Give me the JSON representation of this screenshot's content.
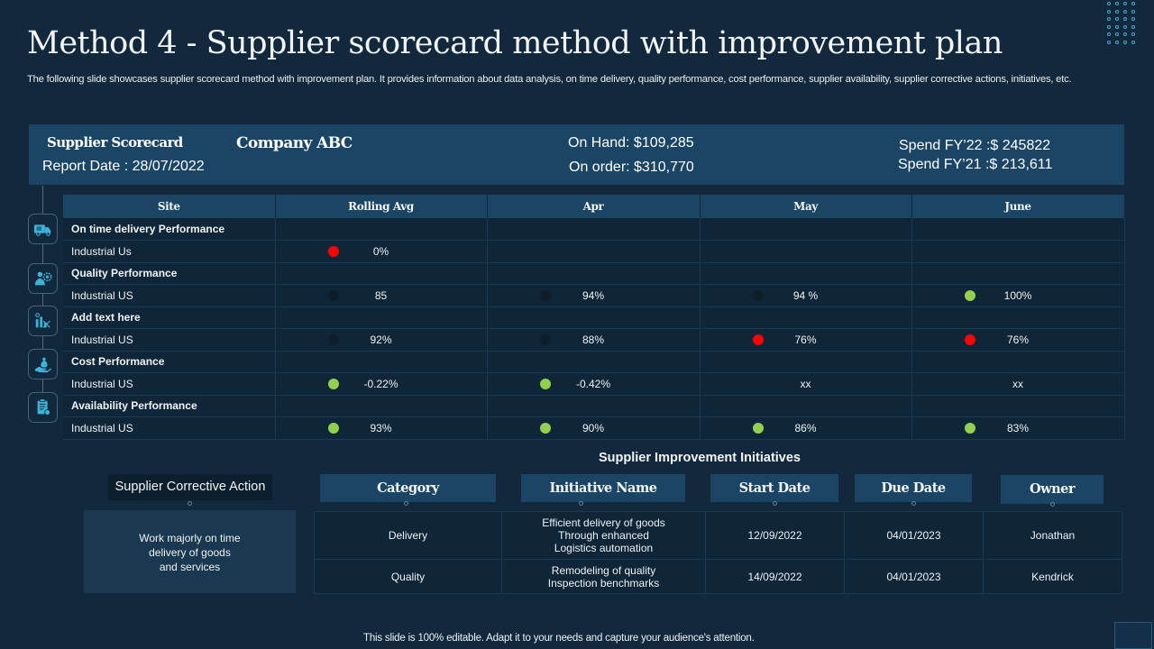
{
  "slide": {
    "title": "Method 4 - Supplier scorecard method with improvement plan",
    "subtitle": "The following slide showcases supplier scorecard method with improvement plan. It provides information about data analysis, on time delivery, quality performance, cost performance, supplier availability, supplier corrective actions, initiatives, etc.",
    "footer": "This slide is 100% editable. Adapt it to your needs and capture your audience's attention."
  },
  "info_band": {
    "scorecard_title": "Supplier Scorecard",
    "report_date": "Report Date : 28/07/2022",
    "company": "Company ABC",
    "on_hand": "On Hand: $109,285",
    "on_order": "On order: $310,770",
    "spend_fy22": "Spend FY’22 :$ 245822",
    "spend_fy21": "Spend FY’21 :$ 213,611"
  },
  "icons": [
    "delivery-truck-icon",
    "quality-person-gear-icon",
    "chart-analysis-icon",
    "cost-hand-money-icon",
    "availability-clipboard-icon"
  ],
  "status_colors": {
    "red": "#ff0000",
    "green": "#92d050",
    "dark": "#0d1d2b"
  },
  "scorecard": {
    "headers": [
      "Site",
      "Rolling Avg",
      "Apr",
      "May",
      "June"
    ],
    "groups": [
      {
        "label": "On time delivery  Performance",
        "site": "Industrial Us",
        "cells": [
          {
            "value": "0%",
            "status": "red"
          },
          {
            "value": "",
            "status": ""
          },
          {
            "value": "",
            "status": ""
          },
          {
            "value": "",
            "status": ""
          }
        ]
      },
      {
        "label": "Quality  Performance",
        "site": "Industrial US",
        "cells": [
          {
            "value": "85",
            "status": "dark"
          },
          {
            "value": "94%",
            "status": "dark"
          },
          {
            "value": "94 %",
            "status": "dark"
          },
          {
            "value": "100%",
            "status": "green"
          }
        ]
      },
      {
        "label": "Add  text here",
        "site": "Industrial US",
        "cells": [
          {
            "value": "92%",
            "status": "dark"
          },
          {
            "value": "88%",
            "status": "dark"
          },
          {
            "value": "76%",
            "status": "red"
          },
          {
            "value": "76%",
            "status": "red"
          }
        ]
      },
      {
        "label": "Cost Performance",
        "site": "Industrial US",
        "cells": [
          {
            "value": "-0.22%",
            "status": "green"
          },
          {
            "value": "-0.42%",
            "status": "green"
          },
          {
            "value": "xx",
            "status": ""
          },
          {
            "value": "xx",
            "status": ""
          }
        ]
      },
      {
        "label": "Availability  Performance",
        "site": "Industrial US",
        "cells": [
          {
            "value": "93%",
            "status": "green"
          },
          {
            "value": "90%",
            "status": "green"
          },
          {
            "value": "86%",
            "status": "green"
          },
          {
            "value": "83%",
            "status": "green"
          }
        ]
      }
    ]
  },
  "improvement": {
    "section_title": "Supplier Improvement Initiatives",
    "corrective_action_label": "Supplier Corrective Action",
    "corrective_action_text": [
      "Work majorly on time",
      "delivery  of goods",
      "and services"
    ],
    "headers": [
      "Category",
      "Initiative Name",
      "Start Date",
      "Due Date",
      "Owner"
    ],
    "rows": [
      {
        "category": "Delivery",
        "initiative": [
          "Efficient delivery of goods",
          "Through enhanced",
          "Logistics automation"
        ],
        "start": "12/09/2022",
        "due": "04/01/2023",
        "owner": "Jonathan"
      },
      {
        "category": "Quality",
        "initiative": [
          "Remodeling of quality",
          "Inspection benchmarks"
        ],
        "start": "14/09/2022",
        "due": "04/01/2023",
        "owner": "Kendrick"
      }
    ]
  }
}
